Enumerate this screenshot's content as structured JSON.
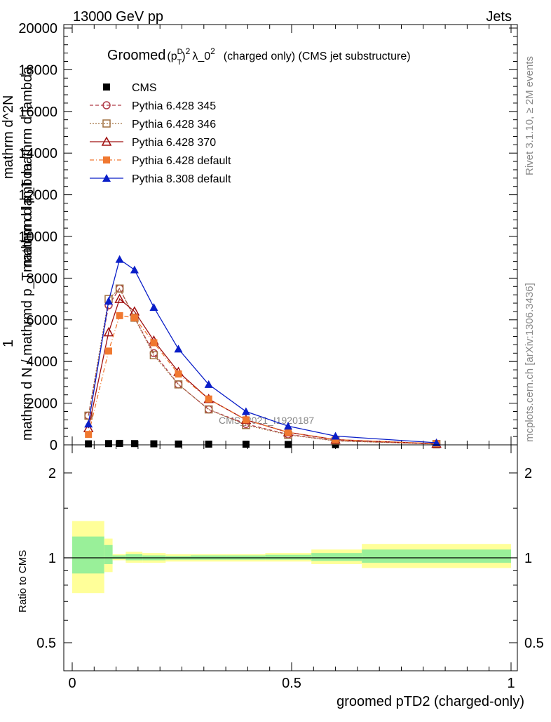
{
  "header": {
    "left": "13000 GeV pp",
    "right": "Jets"
  },
  "side_labels": {
    "rivet": "Rivet 3.1.10, ≥ 2M events",
    "mcplots": "mcplots.cern.ch [arXiv:1306.3436]"
  },
  "chart_data": [
    {
      "type": "line",
      "title_main": "Groomed",
      "title_sup": "D",
      "title_sub": "T",
      "title_exp": "2",
      "title_mid": "λ_0",
      "title_exp2": "2",
      "title_tail": "(charged only) (CMS jet substructure)",
      "ylabel_top": "1",
      "ylabel_bottom": "mathrm d N / mathrmd p_Tmathrm d lambda",
      "ylabel_fraction_top": "mathrm d^2N",
      "ylabel_fraction_bottom": "mathrm d p_T mathrm d lambda",
      "xlim": [
        0,
        1
      ],
      "ylim": [
        0,
        20000
      ],
      "yticks": [
        0,
        2000,
        4000,
        6000,
        8000,
        10000,
        12000,
        14000,
        16000,
        18000,
        20000
      ],
      "ytick_labels": [
        "0",
        "2000",
        "4000",
        "6000",
        "8000",
        "10000",
        "12000",
        "14000",
        "16000",
        "18000",
        "20000"
      ],
      "watermark": "CMS_2021_I1920187",
      "x": [
        0.037,
        0.083,
        0.108,
        0.142,
        0.186,
        0.242,
        0.311,
        0.396,
        0.492,
        0.6,
        0.83
      ],
      "series": [
        {
          "name": "CMS",
          "color": "#000000",
          "marker": "square-filled",
          "dash": "none",
          "values": [
            50,
            60,
            70,
            60,
            50,
            40,
            35,
            30,
            20,
            10,
            5
          ]
        },
        {
          "name": "Pythia 6.428 345",
          "color": "#b03a48",
          "marker": "circle-open",
          "dash": "5,3",
          "values": [
            1400,
            6700,
            7500,
            6100,
            4400,
            2900,
            1700,
            1000,
            500,
            200,
            40
          ]
        },
        {
          "name": "Pythia 6.428 346",
          "color": "#a07040",
          "marker": "square-open",
          "dash": "2,2",
          "values": [
            1400,
            7000,
            7500,
            6100,
            4300,
            2900,
            1700,
            950,
            480,
            190,
            40
          ]
        },
        {
          "name": "Pythia 6.428 370",
          "color": "#a01010",
          "marker": "triangle-open",
          "dash": "none",
          "values": [
            800,
            5400,
            7000,
            6400,
            5000,
            3500,
            2200,
            1200,
            600,
            250,
            50
          ]
        },
        {
          "name": "Pythia 6.428 default",
          "color": "#f07830",
          "marker": "square-filled",
          "dash": "6,3,1,3",
          "values": [
            500,
            4500,
            6200,
            6100,
            4900,
            3400,
            2200,
            1200,
            600,
            250,
            60
          ]
        },
        {
          "name": "Pythia 8.308 default",
          "color": "#0a1ec8",
          "marker": "triangle-filled",
          "dash": "none",
          "values": [
            1000,
            6900,
            8900,
            8400,
            6600,
            4600,
            2900,
            1600,
            900,
            420,
            100
          ]
        }
      ]
    },
    {
      "type": "area",
      "ylabel": "Ratio to CMS",
      "xlabel": "groomed pTD2 (charged-only)",
      "xlim": [
        0,
        1
      ],
      "ylim": [
        0.4,
        2.4
      ],
      "log_y": true,
      "yticks": [
        0.5,
        1,
        2
      ],
      "ytick_labels": [
        "0.5",
        "1",
        "2"
      ],
      "xticks": [
        0,
        0.5,
        1
      ],
      "xtick_labels": [
        "0",
        "0.5",
        "1"
      ],
      "reference": 1,
      "bands": [
        {
          "x0": 0.0,
          "x1": 0.073,
          "yellow": [
            0.75,
            1.35
          ],
          "green": [
            0.88,
            1.19
          ]
        },
        {
          "x0": 0.073,
          "x1": 0.092,
          "yellow": [
            0.89,
            1.17
          ],
          "green": [
            0.95,
            1.11
          ]
        },
        {
          "x0": 0.092,
          "x1": 0.122,
          "yellow": [
            0.98,
            1.03
          ],
          "green": [
            0.99,
            1.02
          ]
        },
        {
          "x0": 0.122,
          "x1": 0.16,
          "yellow": [
            0.96,
            1.05
          ],
          "green": [
            0.98,
            1.03
          ]
        },
        {
          "x0": 0.16,
          "x1": 0.213,
          "yellow": [
            0.96,
            1.04
          ],
          "green": [
            0.98,
            1.02
          ]
        },
        {
          "x0": 0.213,
          "x1": 0.27,
          "yellow": [
            0.97,
            1.03
          ],
          "green": [
            0.985,
            1.015
          ]
        },
        {
          "x0": 0.27,
          "x1": 0.353,
          "yellow": [
            0.97,
            1.03
          ],
          "green": [
            0.985,
            1.02
          ]
        },
        {
          "x0": 0.353,
          "x1": 0.44,
          "yellow": [
            0.97,
            1.03
          ],
          "green": [
            0.985,
            1.02
          ]
        },
        {
          "x0": 0.44,
          "x1": 0.545,
          "yellow": [
            0.97,
            1.04
          ],
          "green": [
            0.985,
            1.025
          ]
        },
        {
          "x0": 0.545,
          "x1": 0.66,
          "yellow": [
            0.95,
            1.07
          ],
          "green": [
            0.975,
            1.04
          ]
        },
        {
          "x0": 0.66,
          "x1": 1.0,
          "yellow": [
            0.92,
            1.12
          ],
          "green": [
            0.96,
            1.07
          ]
        }
      ]
    }
  ]
}
